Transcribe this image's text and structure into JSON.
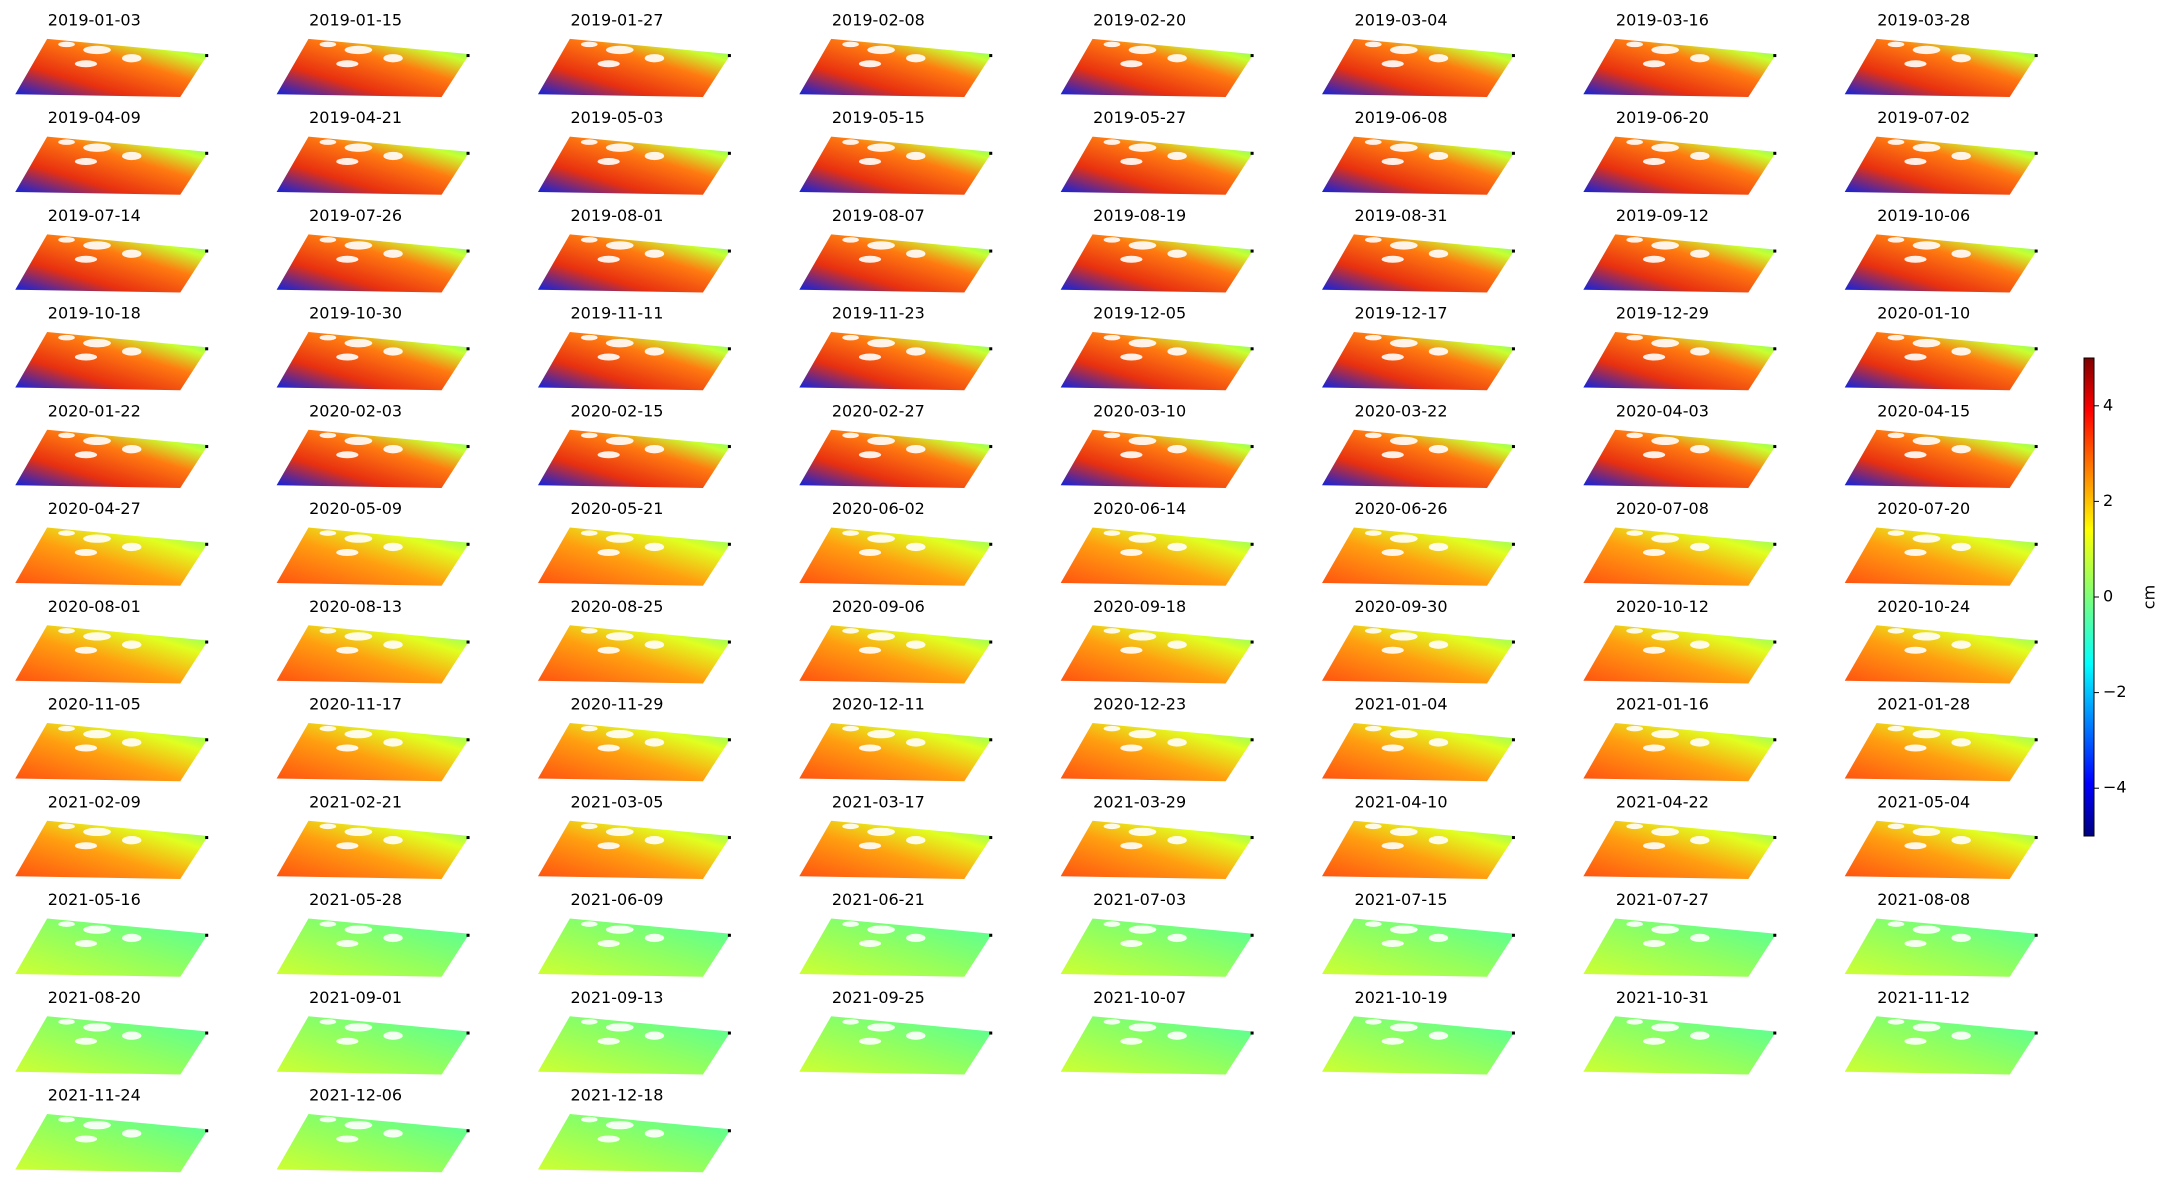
{
  "panels": [
    "2019-01-03",
    "2019-01-15",
    "2019-01-27",
    "2019-02-08",
    "2019-02-20",
    "2019-03-04",
    "2019-03-16",
    "2019-03-28",
    "2019-04-09",
    "2019-04-21",
    "2019-05-03",
    "2019-05-15",
    "2019-05-27",
    "2019-06-08",
    "2019-06-20",
    "2019-07-02",
    "2019-07-14",
    "2019-07-26",
    "2019-08-01",
    "2019-08-07",
    "2019-08-19",
    "2019-08-31",
    "2019-09-12",
    "2019-10-06",
    "2019-10-18",
    "2019-10-30",
    "2019-11-11",
    "2019-11-23",
    "2019-12-05",
    "2019-12-17",
    "2019-12-29",
    "2020-01-10",
    "2020-01-22",
    "2020-02-03",
    "2020-02-15",
    "2020-02-27",
    "2020-03-10",
    "2020-03-22",
    "2020-04-03",
    "2020-04-15",
    "2020-04-27",
    "2020-05-09",
    "2020-05-21",
    "2020-06-02",
    "2020-06-14",
    "2020-06-26",
    "2020-07-08",
    "2020-07-20",
    "2020-08-01",
    "2020-08-13",
    "2020-08-25",
    "2020-09-06",
    "2020-09-18",
    "2020-09-30",
    "2020-10-12",
    "2020-10-24",
    "2020-11-05",
    "2020-11-17",
    "2020-11-29",
    "2020-12-11",
    "2020-12-23",
    "2021-01-04",
    "2021-01-16",
    "2021-01-28",
    "2021-02-09",
    "2021-02-21",
    "2021-03-05",
    "2021-03-17",
    "2021-03-29",
    "2021-04-10",
    "2021-04-22",
    "2021-05-04",
    "2021-05-16",
    "2021-05-28",
    "2021-06-09",
    "2021-06-21",
    "2021-07-03",
    "2021-07-15",
    "2021-07-27",
    "2021-08-08",
    "2021-08-20",
    "2021-09-01",
    "2021-09-13",
    "2021-09-25",
    "2021-10-07",
    "2021-10-19",
    "2021-10-31",
    "2021-11-12",
    "2021-11-24",
    "2021-12-06",
    "2021-12-18"
  ],
  "colorbar": {
    "label": "cm",
    "lim": [
      -5,
      5
    ],
    "ticks": [
      4,
      2,
      0,
      {
        "value": -2,
        "label": "−2"
      },
      {
        "value": -4,
        "label": "−4"
      }
    ]
  }
}
